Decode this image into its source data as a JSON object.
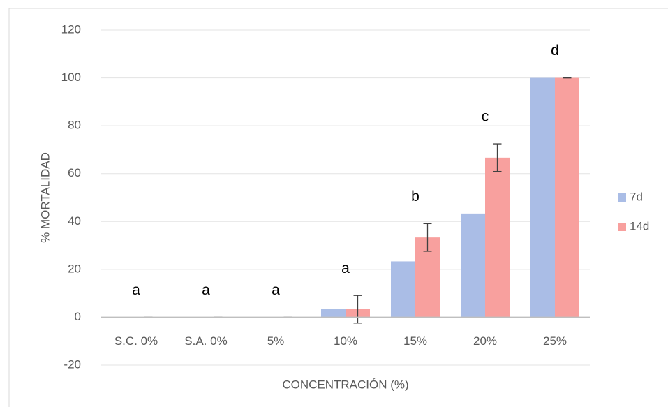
{
  "chart_data": {
    "type": "bar",
    "y_label": "% MORTALIDAD",
    "x_label": "CONCENTRACIÓN (%)",
    "categories": [
      "S.C. 0%",
      "S.A. 0%",
      "5%",
      "10%",
      "15%",
      "20%",
      "25%"
    ],
    "series": [
      {
        "name": "7d",
        "color": "#aabde6",
        "values": [
          0,
          0,
          0,
          3.33,
          23.33,
          43.33,
          100
        ]
      },
      {
        "name": "14d",
        "color": "#f8a09e",
        "values": [
          0,
          0,
          0,
          3.33,
          33.33,
          66.67,
          100
        ],
        "errors": [
          0,
          0,
          0,
          5.77,
          5.77,
          5.77,
          0
        ]
      }
    ],
    "annotations": [
      "a",
      "a",
      "a",
      "a",
      "b",
      "c",
      "d"
    ],
    "ylim": [
      -20,
      120
    ],
    "yticks": [
      -20,
      0,
      20,
      40,
      60,
      80,
      100,
      120
    ],
    "grid": true,
    "legend": "right"
  }
}
